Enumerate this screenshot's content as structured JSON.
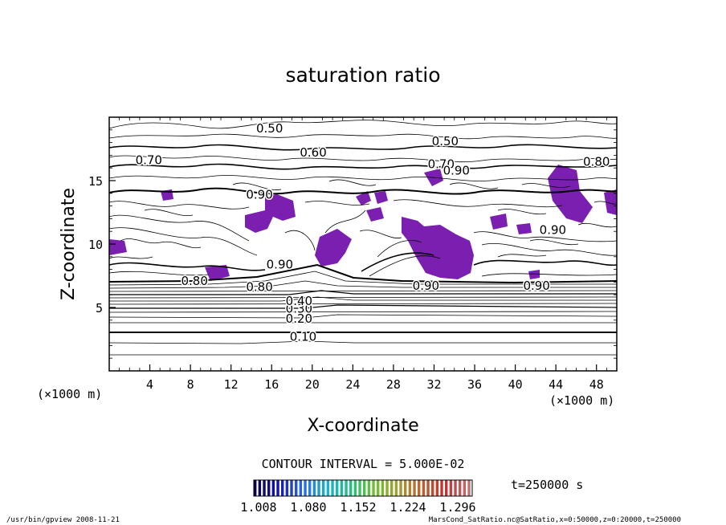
{
  "chart_data": {
    "type": "contour",
    "title": "saturation ratio",
    "xlabel": "X-coordinate",
    "ylabel": "Z-coordinate",
    "x_unit": "(×1000 m)",
    "y_unit": "(×1000 m)",
    "xlim": [
      0,
      50
    ],
    "ylim": [
      0,
      20
    ],
    "x_ticks": [
      4,
      8,
      12,
      16,
      20,
      24,
      28,
      32,
      36,
      40,
      44,
      48
    ],
    "y_ticks": [
      5,
      10,
      15
    ],
    "grid": false,
    "contour_interval_text": "CONTOUR INTERVAL = 5.000E-02",
    "time_text": "t=250000 s",
    "contour_labels": [
      {
        "text": "0.10",
        "x": 19.1,
        "z": 2.7
      },
      {
        "text": "0.20",
        "x": 18.7,
        "z": 4.1
      },
      {
        "text": "0.30",
        "x": 18.7,
        "z": 4.9
      },
      {
        "text": "0.40",
        "x": 18.7,
        "z": 5.5
      },
      {
        "text": "0.80",
        "x": 14.8,
        "z": 6.6
      },
      {
        "text": "0.80",
        "x": 8.4,
        "z": 7.1
      },
      {
        "text": "0.90",
        "x": 16.8,
        "z": 8.4
      },
      {
        "text": "0.90",
        "x": 31.2,
        "z": 6.7
      },
      {
        "text": "0.90",
        "x": 42.1,
        "z": 6.7
      },
      {
        "text": "0.90",
        "x": 43.7,
        "z": 11.1
      },
      {
        "text": "0.90",
        "x": 14.8,
        "z": 13.9
      },
      {
        "text": "0.70",
        "x": 3.9,
        "z": 16.6
      },
      {
        "text": "0.60",
        "x": 20.1,
        "z": 17.2
      },
      {
        "text": "0.50",
        "x": 33.1,
        "z": 18.1
      },
      {
        "text": "0.50",
        "x": 15.8,
        "z": 19.1
      },
      {
        "text": "0.80",
        "x": 48.0,
        "z": 16.5
      },
      {
        "text": "0.70",
        "x": 32.7,
        "z": 16.3
      },
      {
        "text": "0.90",
        "x": 34.2,
        "z": 15.8
      }
    ],
    "colorbar": {
      "ticks": [
        "1.008",
        "1.080",
        "1.152",
        "1.224",
        "1.296"
      ],
      "colors": [
        "#0a0050",
        "#1515b0",
        "#2a6ae0",
        "#18b0d0",
        "#20c080",
        "#70c030",
        "#a0a030",
        "#c06030",
        "#c03030",
        "#c07070"
      ]
    },
    "fill_color": "#7a1fb0"
  },
  "footer": {
    "left": "/usr/bin/gpview   2008-11-21",
    "right": "MarsCond_SatRatio.nc@SatRatio,x=0:50000,z=0:20000,t=250000"
  }
}
